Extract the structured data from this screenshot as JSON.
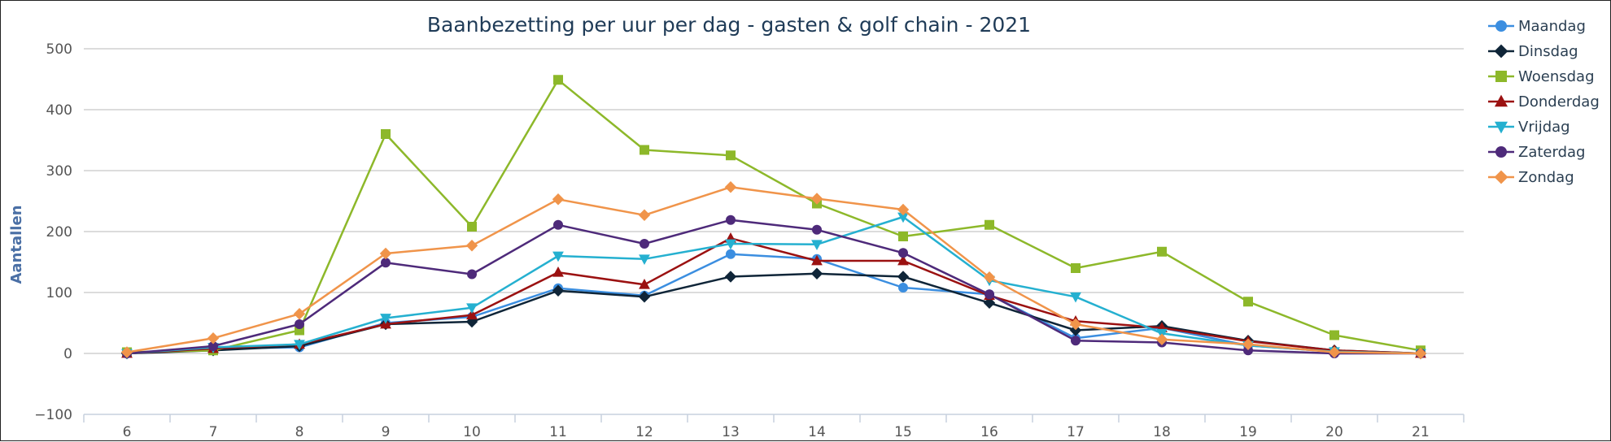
{
  "chart_data": {
    "type": "line",
    "title": "Baanbezetting per uur per dag - gasten & golf chain - 2021",
    "xlabel": "",
    "ylabel": "Aantallen",
    "x": [
      6,
      7,
      8,
      9,
      10,
      11,
      12,
      13,
      14,
      15,
      16,
      17,
      18,
      19,
      20,
      21
    ],
    "ylim": [
      -100,
      500
    ],
    "yticks": [
      -100,
      0,
      100,
      200,
      300,
      400,
      500
    ],
    "grid": true,
    "legend_position": "right",
    "series": [
      {
        "name": "Maandag",
        "color": "#3b8ee0",
        "marker": "circle",
        "values": [
          0,
          8,
          10,
          50,
          60,
          107,
          95,
          163,
          155,
          108,
          97,
          25,
          42,
          13,
          3,
          0
        ]
      },
      {
        "name": "Dinsdag",
        "color": "#0f2538",
        "marker": "diamond",
        "values": [
          0,
          5,
          12,
          48,
          52,
          103,
          93,
          126,
          131,
          126,
          83,
          38,
          45,
          21,
          5,
          0
        ]
      },
      {
        "name": "Woensdag",
        "color": "#8db82a",
        "marker": "square",
        "values": [
          2,
          5,
          38,
          360,
          208,
          449,
          334,
          325,
          246,
          192,
          211,
          140,
          167,
          85,
          30,
          5
        ]
      },
      {
        "name": "Donderdag",
        "color": "#9b1111",
        "marker": "triangle",
        "values": [
          0,
          8,
          15,
          48,
          63,
          133,
          113,
          189,
          152,
          152,
          95,
          53,
          42,
          20,
          5,
          0
        ]
      },
      {
        "name": "Vrijdag",
        "color": "#25b0d0",
        "marker": "triangle-down",
        "values": [
          0,
          10,
          15,
          58,
          75,
          160,
          155,
          180,
          179,
          224,
          120,
          93,
          33,
          13,
          3,
          0
        ]
      },
      {
        "name": "Zaterdag",
        "color": "#4e2a7a",
        "marker": "circle",
        "values": [
          0,
          12,
          48,
          149,
          130,
          211,
          180,
          219,
          203,
          165,
          97,
          21,
          18,
          5,
          0,
          0
        ]
      },
      {
        "name": "Zondag",
        "color": "#f0944a",
        "marker": "diamond",
        "values": [
          2,
          25,
          65,
          164,
          177,
          253,
          227,
          273,
          254,
          236,
          125,
          48,
          23,
          15,
          2,
          0
        ]
      }
    ]
  }
}
